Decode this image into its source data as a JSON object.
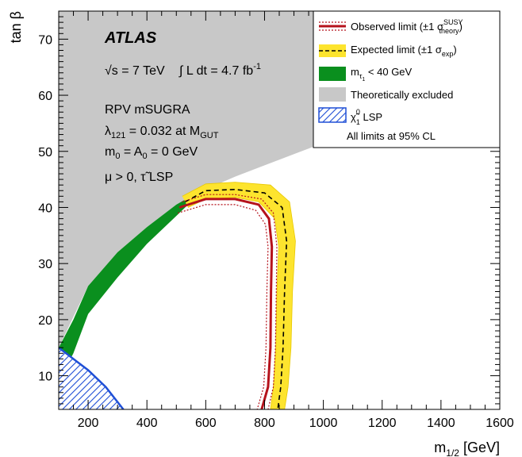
{
  "chart_data": {
    "type": "area",
    "experiment": "ATLAS",
    "energy_label": "√s = 7 TeV",
    "lumi_label": "∫ L dt = 4.7 fb",
    "lumi_sup": "-1",
    "annotations": {
      "model": "RPV mSUGRA",
      "lambda": "λ",
      "lambda_sub": "121",
      "lambda_rest": " = 0.032 at M",
      "lambda_sub2": "GUT",
      "m0": "m",
      "m0_sub": "0",
      "m0_mid": " = A",
      "m0_sub2": "0",
      "m0_rest": " = 0 GeV",
      "mu": "μ > 0, τ̃ LSP"
    },
    "xlabel": "m",
    "xlabel_sub": "1/2",
    "xlabel_rest": " [GeV]",
    "ylabel": "tan β",
    "xlim": [
      100,
      1600
    ],
    "ylim": [
      4,
      75
    ],
    "xticks": [
      200,
      400,
      600,
      800,
      1000,
      1200,
      1400,
      1600
    ],
    "yticks": [
      10,
      20,
      30,
      40,
      50,
      60,
      70
    ],
    "legend": {
      "position": "top-right",
      "observed": "Observed limit (±1 σ",
      "observed_sup": "SUSY",
      "observed_sub": "theory",
      "observed_close": ")",
      "expected": "Expected limit (±1 σ",
      "expected_sub": "exp",
      "expected_close": ")",
      "mtau": "m",
      "mtau_sub": "τ",
      "mtau_subsub": "1",
      "mtau_rest": " < 40 GeV",
      "theory": "Theoretically excluded",
      "lsp": "χ̃",
      "lsp_sup": "0",
      "lsp_sub": "1",
      "lsp_rest": " LSP",
      "note": "All limits at 95% CL"
    },
    "colors": {
      "observed": "#b5121b",
      "expected_band": "#fde42e",
      "mtau": "#0a8f1e",
      "theory": "#c8c8c8",
      "lsp": "#1f4fd6"
    },
    "theory_boundary": [
      [
        100,
        15
      ],
      [
        200,
        26
      ],
      [
        300,
        32
      ],
      [
        400,
        36.5
      ],
      [
        500,
        40.5
      ],
      [
        600,
        43.2
      ],
      [
        700,
        45.5
      ],
      [
        800,
        47.5
      ],
      [
        900,
        49.5
      ],
      [
        1000,
        51.5
      ],
      [
        1100,
        54
      ],
      [
        1200,
        57
      ],
      [
        1300,
        60
      ],
      [
        1400,
        64
      ],
      [
        1500,
        68
      ],
      [
        1600,
        72
      ]
    ],
    "green_band_upper": [
      [
        100,
        15
      ],
      [
        150,
        20
      ],
      [
        200,
        26
      ],
      [
        300,
        32
      ],
      [
        400,
        36.5
      ],
      [
        500,
        40.5
      ],
      [
        550,
        42
      ]
    ],
    "green_band_lower": [
      [
        100,
        9
      ],
      [
        150,
        14
      ],
      [
        200,
        21
      ],
      [
        300,
        27.5
      ],
      [
        400,
        33.5
      ],
      [
        500,
        38.5
      ],
      [
        550,
        41
      ]
    ],
    "lsp_region": [
      [
        100,
        15
      ],
      [
        100,
        4
      ],
      [
        320,
        4
      ],
      [
        260,
        8
      ],
      [
        200,
        11
      ],
      [
        150,
        13
      ]
    ],
    "observed": [
      [
        510,
        40
      ],
      [
        600,
        41.5
      ],
      [
        700,
        41.5
      ],
      [
        780,
        40.5
      ],
      [
        815,
        38
      ],
      [
        825,
        33
      ],
      [
        822,
        25
      ],
      [
        820,
        15
      ],
      [
        812,
        8
      ],
      [
        790,
        4
      ]
    ],
    "observed_band_up": [
      [
        520,
        41
      ],
      [
        600,
        42.3
      ],
      [
        700,
        42.3
      ],
      [
        790,
        41.5
      ],
      [
        830,
        39
      ],
      [
        842,
        33
      ],
      [
        840,
        25
      ],
      [
        837,
        15
      ],
      [
        830,
        8
      ],
      [
        812,
        4
      ]
    ],
    "observed_band_down": [
      [
        505,
        39
      ],
      [
        600,
        40.5
      ],
      [
        700,
        40.5
      ],
      [
        770,
        39.5
      ],
      [
        803,
        37
      ],
      [
        812,
        33
      ],
      [
        808,
        25
      ],
      [
        805,
        15
      ],
      [
        797,
        8
      ],
      [
        775,
        4
      ]
    ],
    "expected": [
      [
        530,
        41
      ],
      [
        600,
        43
      ],
      [
        700,
        43.2
      ],
      [
        800,
        42.6
      ],
      [
        860,
        40
      ],
      [
        875,
        34
      ],
      [
        868,
        25
      ],
      [
        863,
        15
      ],
      [
        855,
        8
      ],
      [
        845,
        4
      ]
    ],
    "expected_band_up": [
      [
        520,
        42
      ],
      [
        600,
        44.2
      ],
      [
        700,
        44.5
      ],
      [
        820,
        44
      ],
      [
        885,
        41
      ],
      [
        905,
        34
      ],
      [
        895,
        25
      ],
      [
        890,
        15
      ],
      [
        880,
        8
      ],
      [
        868,
        4
      ]
    ],
    "expected_band_down": [
      [
        540,
        40
      ],
      [
        600,
        41.5
      ],
      [
        700,
        41.8
      ],
      [
        780,
        41
      ],
      [
        835,
        38
      ],
      [
        848,
        33
      ],
      [
        842,
        25
      ],
      [
        838,
        15
      ],
      [
        830,
        8
      ],
      [
        820,
        4
      ]
    ]
  }
}
